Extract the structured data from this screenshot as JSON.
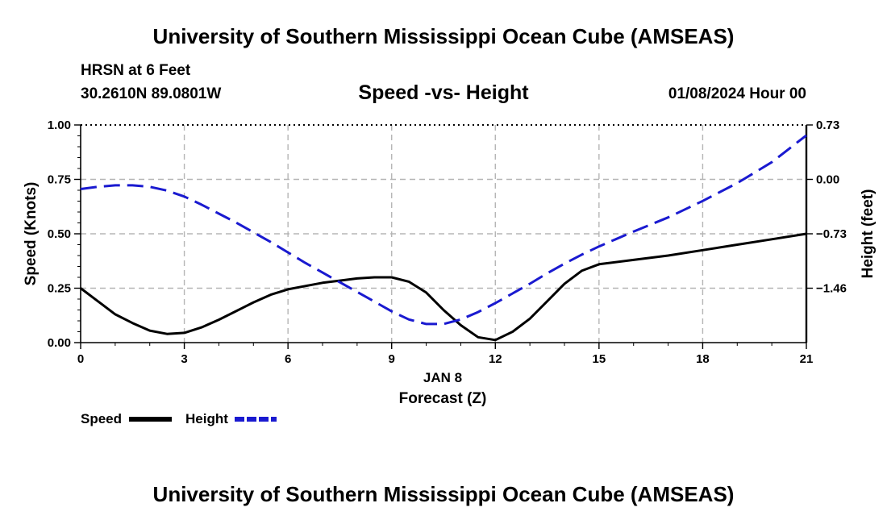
{
  "page": {
    "title_top": "University of Southern Mississippi Ocean Cube (AMSEAS)",
    "title_bottom": "University of Southern Mississippi Ocean Cube (AMSEAS)",
    "station": "HRSN at 6 Feet",
    "coords": "30.2610N  89.0801W",
    "datetime": "01/08/2024 Hour 00"
  },
  "chart_data": {
    "type": "line",
    "title": "Speed -vs- Height",
    "xlabel": "Forecast (Z)",
    "x_date_label": "JAN 8",
    "ylabel_left": "Speed (Knots)",
    "ylabel_right": "Height (feet)",
    "xlim": [
      0,
      21
    ],
    "ylim_left": [
      0,
      1
    ],
    "ylim_right": [
      -2.19,
      0.73
    ],
    "x_ticks": [
      0,
      3,
      6,
      9,
      12,
      15,
      18,
      21
    ],
    "x_tick_labels": [
      "0",
      "3",
      "6",
      "9",
      "12",
      "15",
      "18",
      "21"
    ],
    "y_left_ticks": [
      0,
      0.25,
      0.5,
      0.75,
      1.0
    ],
    "y_left_tick_labels": [
      "0.00",
      "0.25",
      "0.50",
      "0.75",
      "1.00"
    ],
    "y_right_ticks": [
      -1.46,
      -0.73,
      0.0,
      0.73
    ],
    "y_right_tick_labels": [
      "−1.46",
      "−0.73",
      "0.00",
      "0.73"
    ],
    "grid": true,
    "series": [
      {
        "name": "Speed",
        "axis": "left",
        "color": "#000000",
        "style": "solid",
        "x": [
          0,
          0.5,
          1,
          1.5,
          2,
          2.5,
          3,
          3.5,
          4,
          4.5,
          5,
          5.5,
          6,
          6.5,
          7,
          7.5,
          8,
          8.5,
          9,
          9.5,
          10,
          10.5,
          11,
          11.5,
          12,
          12.5,
          13,
          13.5,
          14,
          14.5,
          15,
          16,
          17,
          18,
          19,
          20,
          21
        ],
        "values": [
          0.25,
          0.19,
          0.13,
          0.09,
          0.055,
          0.04,
          0.045,
          0.07,
          0.105,
          0.145,
          0.185,
          0.22,
          0.245,
          0.26,
          0.275,
          0.285,
          0.295,
          0.3,
          0.3,
          0.28,
          0.23,
          0.15,
          0.08,
          0.025,
          0.012,
          0.05,
          0.11,
          0.19,
          0.27,
          0.33,
          0.36,
          0.38,
          0.4,
          0.425,
          0.45,
          0.475,
          0.5
        ]
      },
      {
        "name": "Height",
        "axis": "right",
        "color": "#1a1ad0",
        "style": "dashed",
        "x": [
          0,
          0.5,
          1,
          1.5,
          2,
          2.5,
          3,
          3.5,
          4,
          4.5,
          5,
          5.5,
          6,
          6.5,
          7,
          7.5,
          8,
          8.5,
          9,
          9.5,
          10,
          10.5,
          11,
          11.5,
          12,
          12.5,
          13,
          13.5,
          14,
          14.5,
          15,
          16,
          17,
          18,
          19,
          20,
          21
        ],
        "values": [
          -0.13,
          -0.1,
          -0.08,
          -0.08,
          -0.1,
          -0.15,
          -0.23,
          -0.34,
          -0.46,
          -0.58,
          -0.71,
          -0.84,
          -0.98,
          -1.12,
          -1.25,
          -1.38,
          -1.51,
          -1.64,
          -1.77,
          -1.88,
          -1.94,
          -1.94,
          -1.88,
          -1.78,
          -1.66,
          -1.53,
          -1.4,
          -1.26,
          -1.13,
          -1.01,
          -0.9,
          -0.7,
          -0.51,
          -0.29,
          -0.05,
          0.23,
          0.59
        ]
      }
    ],
    "legend": [
      {
        "label": "Speed",
        "color": "#000000",
        "style": "solid"
      },
      {
        "label": "Height",
        "color": "#1a1ad0",
        "style": "dashed"
      }
    ]
  }
}
